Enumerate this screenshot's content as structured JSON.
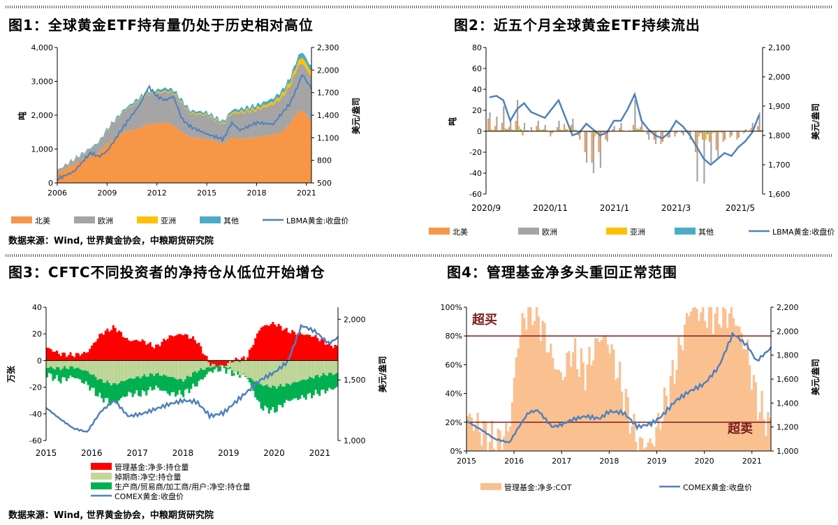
{
  "panels": {
    "p1": {
      "title": "图1：全球黄金ETF持有量仍处于历史相对高位",
      "source": "数据来源：Wind, 世界黄金协会，中粮期货研究院"
    },
    "p2": {
      "title": "图2：近五个月全球黄金ETF持续流出"
    },
    "p3": {
      "title": "图3：CFTC不同投资者的净持仓从低位开始增仓",
      "source": "数据来源：Wind, 世界黄金协会，中粮期货研究院"
    },
    "p4": {
      "title": "图4：管理基金净多头重回正常范围"
    }
  },
  "colors": {
    "orange": "#F79646",
    "gray": "#A5A5A5",
    "yellow": "#FFC000",
    "teal": "#4BACC6",
    "blue": "#4F81BD",
    "red": "#FF0000",
    "lightgreen": "#C4D79B",
    "green": "#00B050",
    "peach": "#FAC090",
    "darkred": "#7B1C1C"
  },
  "chart_data": [
    {
      "type": "area",
      "x": [
        2006.0,
        2007.0,
        2008.0,
        2008.5,
        2009.0,
        2010.0,
        2011.0,
        2011.5,
        2012.0,
        2012.5,
        2013.0,
        2013.5,
        2014.0,
        2015.0,
        2016.0,
        2016.5,
        2017.0,
        2018.0,
        2019.0,
        2019.5,
        2020.0,
        2020.5,
        2020.75,
        2021.0,
        2021.3
      ],
      "series": [
        {
          "name": "北美",
          "values": [
            300,
            550,
            800,
            900,
            1150,
            1500,
            1620,
            1750,
            1750,
            1780,
            1700,
            1500,
            1350,
            1300,
            1170,
            1350,
            1300,
            1350,
            1420,
            1500,
            1750,
            2100,
            2150,
            2000,
            1800
          ]
        },
        {
          "name": "欧洲",
          "values": [
            60,
            130,
            200,
            280,
            400,
            600,
            850,
            880,
            900,
            910,
            950,
            850,
            700,
            700,
            550,
            700,
            760,
            800,
            900,
            1000,
            1100,
            1350,
            1400,
            1350,
            1350
          ]
        },
        {
          "name": "亚洲",
          "values": [
            0,
            5,
            5,
            5,
            10,
            15,
            20,
            25,
            30,
            30,
            30,
            30,
            30,
            30,
            30,
            40,
            50,
            60,
            80,
            100,
            120,
            150,
            170,
            160,
            150
          ]
        },
        {
          "name": "其他",
          "values": [
            10,
            20,
            30,
            30,
            40,
            50,
            60,
            60,
            70,
            80,
            80,
            70,
            60,
            60,
            60,
            70,
            80,
            90,
            100,
            110,
            120,
            150,
            160,
            150,
            140
          ]
        },
        {
          "name": "LBMA黄金:收盘价",
          "values": [
            550,
            650,
            900,
            850,
            920,
            1250,
            1550,
            1780,
            1650,
            1600,
            1650,
            1350,
            1250,
            1150,
            1080,
            1300,
            1200,
            1300,
            1280,
            1420,
            1550,
            1800,
            1950,
            1850,
            1760
          ]
        }
      ],
      "ylim": [
        0,
        4000
      ],
      "y2lim": [
        500,
        2300
      ],
      "yticks": [
        "0",
        "1,000",
        "2,000",
        "3,000",
        "4,000"
      ],
      "y2ticks": [
        "500",
        "800",
        "1,100",
        "1,400",
        "1,700",
        "2,000",
        "2,300"
      ],
      "xticks": [
        "2006",
        "2009",
        "2012",
        "2015",
        "2018",
        "2021"
      ],
      "ylabel": "吨",
      "y2label": "美元/盎司",
      "legend": [
        "北美",
        "欧洲",
        "亚洲",
        "其他",
        "LBMA黄金:收盘价"
      ]
    },
    {
      "type": "bar",
      "categories_count": 40,
      "series": [
        {
          "name": "北美",
          "values": [
            12,
            5,
            8,
            4,
            10,
            -4,
            0,
            5,
            2,
            -5,
            4,
            7,
            6,
            -4,
            -20,
            -30,
            -20,
            -8,
            2,
            3,
            0,
            6,
            4,
            -3,
            -8,
            -12,
            -6,
            -5,
            -2,
            -3,
            -20,
            -8,
            -10,
            -18,
            -10,
            -6,
            -8,
            -2,
            3,
            5
          ]
        },
        {
          "name": "欧洲",
          "values": [
            18,
            14,
            24,
            10,
            30,
            8,
            4,
            10,
            6,
            -2,
            10,
            2,
            12,
            -8,
            -30,
            -40,
            -35,
            -10,
            5,
            8,
            0,
            30,
            10,
            -8,
            -12,
            -10,
            -6,
            -2,
            -4,
            -8,
            -48,
            -50,
            -30,
            -25,
            -8,
            -4,
            -6,
            2,
            8,
            18
          ]
        },
        {
          "name": "亚洲",
          "values": [
            2,
            1,
            3,
            2,
            5,
            1,
            1,
            2,
            1,
            1,
            2,
            2,
            2,
            -1,
            -1,
            -5,
            -2,
            -1,
            0,
            1,
            1,
            3,
            1,
            0,
            -1,
            -1,
            0,
            0,
            0,
            0,
            -5,
            -8,
            -2,
            -1,
            0,
            0,
            0,
            0,
            1,
            1
          ]
        },
        {
          "name": "其他",
          "values": [
            1,
            1,
            2,
            1,
            2,
            1,
            0,
            1,
            0,
            0,
            1,
            0,
            1,
            0,
            -1,
            -2,
            -1,
            0,
            0,
            0,
            0,
            2,
            0,
            0,
            0,
            -1,
            0,
            0,
            0,
            0,
            -2,
            -3,
            -1,
            -1,
            0,
            0,
            0,
            0,
            0,
            1
          ]
        },
        {
          "name": "LBMA黄金:收盘价",
          "values": [
            1930,
            1935,
            1920,
            1850,
            1890,
            1910,
            1880,
            1870,
            1860,
            1890,
            1920,
            1860,
            1800,
            1810,
            1840,
            1820,
            1800,
            1810,
            1850,
            1850,
            1890,
            1940,
            1850,
            1820,
            1800,
            1790,
            1810,
            1850,
            1830,
            1800,
            1760,
            1720,
            1700,
            1720,
            1740,
            1730,
            1760,
            1780,
            1810,
            1870
          ]
        }
      ],
      "ylim": [
        -60,
        80
      ],
      "y2lim": [
        1600,
        2100
      ],
      "yticks": [
        "-60",
        "-40",
        "-20",
        "0",
        "20",
        "40",
        "60",
        "80"
      ],
      "y2ticks": [
        "1,600",
        "1,700",
        "1,800",
        "1,900",
        "2,000",
        "2,100"
      ],
      "xticks": [
        "2020/9",
        "2020/11",
        "2021/1",
        "2021/3",
        "2021/5"
      ],
      "ylabel": "吨",
      "y2label": "美元/盎司",
      "legend": [
        "北美",
        "欧洲",
        "亚洲",
        "其他",
        "LBMA黄金:收盘价"
      ]
    },
    {
      "type": "area",
      "x": [
        2015.0,
        2015.3,
        2015.6,
        2015.9,
        2016.2,
        2016.5,
        2016.8,
        2017.1,
        2017.4,
        2017.7,
        2018.0,
        2018.3,
        2018.6,
        2018.9,
        2019.1,
        2019.4,
        2019.7,
        2020.0,
        2020.3,
        2020.6,
        2020.9,
        2021.2,
        2021.4
      ],
      "series": [
        {
          "name": "管理基金:净多:持仓量",
          "values": [
            10,
            5,
            4,
            6,
            20,
            25,
            15,
            15,
            10,
            18,
            20,
            15,
            -3,
            -4,
            0,
            2,
            25,
            28,
            22,
            20,
            18,
            12,
            10
          ]
        },
        {
          "name": "掉期商:净空:持仓量",
          "values": [
            -5,
            -6,
            -5,
            -8,
            -15,
            -18,
            -14,
            -12,
            -10,
            -12,
            -15,
            -8,
            -5,
            -3,
            -8,
            -12,
            -18,
            -20,
            -18,
            -15,
            -12,
            -10,
            -10
          ]
        },
        {
          "name": "生产商/贸易商/加工商/用户:净空:持仓量",
          "values": [
            -10,
            -15,
            -12,
            -18,
            -28,
            -32,
            -25,
            -25,
            -20,
            -25,
            -25,
            -18,
            -8,
            -6,
            -10,
            -12,
            -35,
            -38,
            -30,
            -28,
            -25,
            -22,
            -20
          ]
        },
        {
          "name": "COMEX黄金:收盘价",
          "values": [
            1270,
            1180,
            1100,
            1070,
            1240,
            1330,
            1200,
            1220,
            1260,
            1300,
            1330,
            1320,
            1200,
            1230,
            1300,
            1400,
            1500,
            1560,
            1650,
            1950,
            1900,
            1800,
            1850
          ]
        }
      ],
      "ylim": [
        -60,
        40
      ],
      "y2lim": [
        1000,
        2100
      ],
      "yticks": [
        "-60",
        "-40",
        "-20",
        "0",
        "20",
        "40"
      ],
      "y2ticks": [
        "1,000",
        "1,500",
        "2,000"
      ],
      "xticks": [
        "2015",
        "2016",
        "2017",
        "2018",
        "2019",
        "2020",
        "2021"
      ],
      "ylabel": "万张",
      "y2label": "美元/盎司",
      "legend": [
        "管理基金:净多:持仓量",
        "掉期商:净空:持仓量",
        "生产商/贸易商/加工商/用户:净空:持仓量",
        "COMEX黄金:收盘价"
      ]
    },
    {
      "type": "bar",
      "x": [
        2015.0,
        2015.3,
        2015.6,
        2015.9,
        2016.1,
        2016.3,
        2016.5,
        2016.8,
        2017.0,
        2017.2,
        2017.5,
        2017.8,
        2018.0,
        2018.3,
        2018.6,
        2018.9,
        2019.1,
        2019.4,
        2019.7,
        2020.0,
        2020.3,
        2020.6,
        2020.9,
        2021.1,
        2021.4
      ],
      "series": [
        {
          "name": "管理基金:净多:COT",
          "values": [
            25,
            15,
            5,
            15,
            80,
            100,
            95,
            65,
            50,
            70,
            55,
            80,
            75,
            40,
            5,
            5,
            25,
            60,
            100,
            95,
            95,
            95,
            70,
            35,
            15
          ]
        },
        {
          "name": "COMEX黄金:收盘价",
          "values": [
            1250,
            1180,
            1100,
            1070,
            1200,
            1320,
            1340,
            1200,
            1220,
            1260,
            1290,
            1270,
            1330,
            1320,
            1200,
            1230,
            1290,
            1420,
            1500,
            1560,
            1700,
            1980,
            1880,
            1750,
            1860
          ]
        }
      ],
      "ylim": [
        0,
        100
      ],
      "y2lim": [
        1000,
        2200
      ],
      "yticks": [
        "0%",
        "20%",
        "40%",
        "60%",
        "80%",
        "100%"
      ],
      "y2ticks": [
        "1,000",
        "1,200",
        "1,400",
        "1,600",
        "1,800",
        "2,000",
        "2,200"
      ],
      "xticks": [
        "2015",
        "2016",
        "2017",
        "2018",
        "2019",
        "2020",
        "2021"
      ],
      "ylabel": "",
      "y2label": "美元/盎司",
      "annotations": [
        "超买",
        "超卖"
      ],
      "legend": [
        "管理基金:净多:COT",
        "COMEX黄金:收盘价"
      ]
    }
  ]
}
